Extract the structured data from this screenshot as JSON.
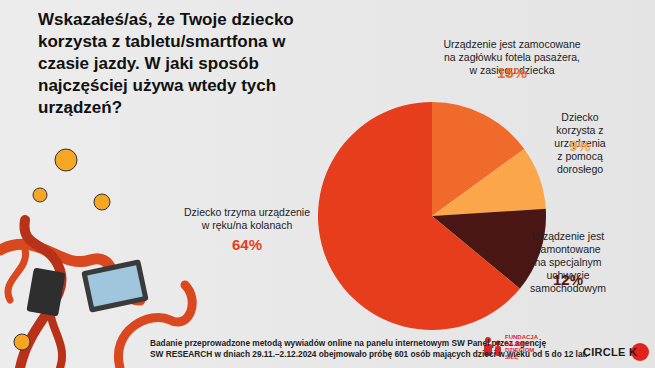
{
  "chart_data": {
    "type": "pie",
    "title": "Wskazałeś/aś, że Twoje dziecko\nkorzysta z tabletu/smartfona w\nczasie jazdy. W jaki sposób\nnajczęściej używa wtedy tych\nurządzeń?",
    "categories": [
      "Urządzenie jest zamocowane na zagłówku fotela pasażera,\nw zasięgu dziecka",
      "Dziecko korzysta z urządzenia\nz pomocą dorosłego",
      "Urządzenie jest zamontowane\nna specjalnym\nuchwycie samochodowym",
      "Dziecko trzyma urządzenie\nw ręku/na kolanach"
    ],
    "values": [
      15,
      9,
      12,
      64
    ],
    "value_labels": [
      "15%",
      "9%",
      "12%",
      "64%"
    ],
    "colors": [
      "#ef6a2b",
      "#fba64b",
      "#4a1714",
      "#e63d1c"
    ],
    "data_labels": true,
    "footnote": "Badanie przeprowadzone metodą wywiadów online na panelu internetowym SW Panel przez agencję\nSW RESEARCH w dniach 29.11.–2.12.2024 obejmowało próbę 601 osób mających dzieci w wieku od 5 do 12 lat.",
    "logos": [
      "FUNDACJA\nDAJEMY\nDZIECIOM\nSIŁĘ",
      "CIRCLE K"
    ]
  }
}
